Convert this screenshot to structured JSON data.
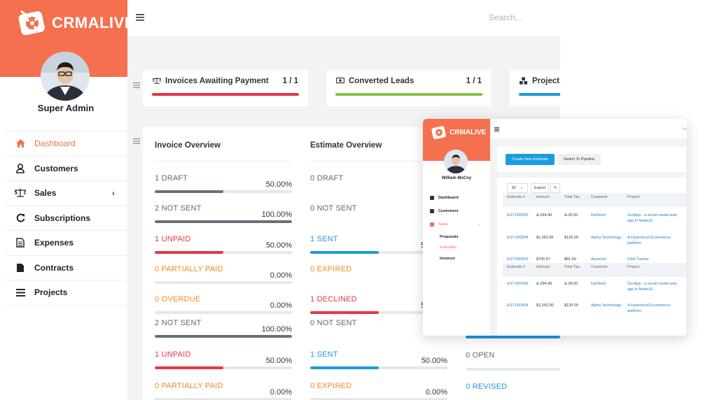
{
  "brand": {
    "name": "CRMALIVE",
    "accent": "#f4704f"
  },
  "user": {
    "name": "Super Admin"
  },
  "search": {
    "placeholder": "Search..."
  },
  "sidebar": {
    "items": [
      {
        "label": "Dashboard",
        "icon": "home-icon",
        "active": true
      },
      {
        "label": "Customers",
        "icon": "user-icon"
      },
      {
        "label": "Sales",
        "icon": "balance-scale-icon",
        "has_submenu": true
      },
      {
        "label": "Subscriptions",
        "icon": "refresh-icon"
      },
      {
        "label": "Expenses",
        "icon": "file-text-icon"
      },
      {
        "label": "Contracts",
        "icon": "file-icon"
      },
      {
        "label": "Projects",
        "icon": "bars-icon"
      }
    ]
  },
  "kpis": [
    {
      "title": "Invoices Awaiting Payment",
      "count": "1 / 1",
      "icon": "balance-scale-icon",
      "color": "#ea3446"
    },
    {
      "title": "Converted Leads",
      "count": "1 / 1",
      "icon": "money-icon",
      "color": "#84c341"
    },
    {
      "title": "Projects",
      "count": "",
      "icon": "cubes-icon",
      "color": "#1e9ad8"
    }
  ],
  "invoice_overview": {
    "title": "Invoice Overview",
    "rows": [
      {
        "label": "1 DRAFT",
        "pct": "50.00%",
        "fill": 0.5,
        "color": "grey"
      },
      {
        "label": "2 NOT SENT",
        "pct": "100.00%",
        "fill": 1.0,
        "color": "grey"
      },
      {
        "label": "1 UNPAID",
        "pct": "50.00%",
        "fill": 0.5,
        "color": "red"
      },
      {
        "label": "0 PARTIALLY PAID",
        "pct": "0.00%",
        "fill": 0,
        "color": "orange"
      },
      {
        "label": "0 OVERDUE",
        "pct": "0.00%",
        "fill": 0,
        "color": "orange"
      },
      {
        "label": "2 NOT SENT",
        "pct": "100.00%",
        "fill": 1.0,
        "color": "grey"
      },
      {
        "label": "1 UNPAID",
        "pct": "50.00%",
        "fill": 0.5,
        "color": "red"
      },
      {
        "label": "0 PARTIALLY PAID",
        "pct": "0.00%",
        "fill": 0,
        "color": "orange"
      }
    ]
  },
  "estimate_overview": {
    "title": "Estimate Overview",
    "rows": [
      {
        "label": "0 DRAFT",
        "pct": "",
        "fill": null,
        "color": "grey"
      },
      {
        "label": "0 NOT SENT",
        "pct": "",
        "fill": null,
        "color": "grey"
      },
      {
        "label": "1 SENT",
        "pct": "5",
        "fill": 0.5,
        "color": "blue"
      },
      {
        "label": "0 EXPIRED",
        "pct": "",
        "fill": null,
        "color": "orange"
      },
      {
        "label": "1 DECLINED",
        "pct": "5",
        "fill": 0.5,
        "color": "red"
      },
      {
        "label": "0 NOT SENT",
        "pct": "",
        "fill": null,
        "color": "grey"
      },
      {
        "label": "1 SENT",
        "pct": "50.00%",
        "fill": 0.5,
        "color": "blue"
      },
      {
        "label": "0 EXPIRED",
        "pct": "0.00%",
        "fill": 0,
        "color": "orange"
      }
    ]
  },
  "proposal_overview_partial": {
    "rows": [
      {
        "label": "0 OPEN",
        "color": "grey"
      },
      {
        "label": "0 REVISED",
        "color": "blue"
      }
    ]
  },
  "inset": {
    "brand": "CRMALIVE",
    "user": "William McCoy",
    "search": "Se",
    "menu": [
      {
        "label": "Dashboard"
      },
      {
        "label": "Customers"
      },
      {
        "label": "Sales",
        "active": true
      }
    ],
    "submenu": [
      {
        "label": "Proposals"
      },
      {
        "label": "Estimates",
        "active": true
      },
      {
        "label": "Invoices"
      }
    ],
    "buttons": {
      "primary": "Create New Estimate",
      "secondary": "Switch To Pipeline"
    },
    "page_size": "25",
    "export": "Export",
    "columns": [
      "Estimate #",
      "Amount",
      "Total Tax",
      "Customer",
      "Project"
    ],
    "rows": [
      [
        "EST-000005",
        "&‑294,40",
        "&‑30,00",
        "NutShell",
        "OurApp - a social media web app in NodeJS"
      ],
      [
        "EST-000004",
        "$1,052.00",
        "$120.00",
        "Alpha Technology",
        "A Hyperlocal Ecommerce platform"
      ],
      [
        "EST-000003",
        "$705.67",
        "$81.60",
        "Assorted",
        "DSA Tracker"
      ]
    ],
    "rows2": [
      [
        "EST-000005",
        "&‑294,40",
        "&‑30,00",
        "NutShell",
        "OurApp - a social media web app in NodeJS"
      ],
      [
        "EST-000004",
        "$1,052.00",
        "$120.00",
        "Alpha Technology",
        "A Hyperlocal Ecommerce platform"
      ]
    ]
  },
  "colors": {
    "red": "#ea3446",
    "grey": "#6c6f7a",
    "orange": "#f28a22",
    "blue": "#1e9ad8",
    "green": "#84c341"
  }
}
